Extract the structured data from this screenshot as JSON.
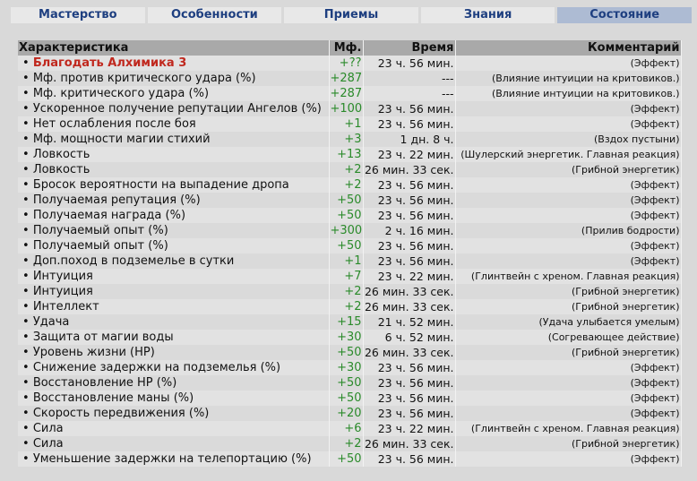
{
  "tabs": [
    "Мастерство",
    "Особенности",
    "Приемы",
    "Знания",
    "Состояние"
  ],
  "active_tab": 4,
  "table": {
    "headers": [
      "Характеристика",
      "Мф.",
      "Время",
      "Комментарий"
    ],
    "rows": [
      [
        "Благодать Алхимика 3",
        "+??",
        "23 ч. 56 мин.",
        "(Эффект)"
      ],
      [
        "Мф. против критического удара (%)",
        "+287",
        "---",
        "(Влияние интуиции на критовиков.)"
      ],
      [
        "Мф. критического удара (%)",
        "+287",
        "---",
        "(Влияние интуиции на критовиков.)"
      ],
      [
        "Ускоренное получение репутации Ангелов (%)",
        "+100",
        "23 ч. 56 мин.",
        "(Эффект)"
      ],
      [
        "Нет ослабления после боя",
        "+1",
        "23 ч. 56 мин.",
        "(Эффект)"
      ],
      [
        "Мф. мощности магии стихий",
        "+3",
        "1 дн. 8 ч.",
        "(Вздох пустыни)"
      ],
      [
        "Ловкость",
        "+13",
        "23 ч. 22 мин.",
        "(Шулерский энергетик. Главная реакция)"
      ],
      [
        "Ловкость",
        "+2",
        "26 мин. 33 сек.",
        "(Грибной энергетик)"
      ],
      [
        "Бросок вероятности на выпадение дропа",
        "+2",
        "23 ч. 56 мин.",
        "(Эффект)"
      ],
      [
        "Получаемая репутация (%)",
        "+50",
        "23 ч. 56 мин.",
        "(Эффект)"
      ],
      [
        "Получаемая награда (%)",
        "+50",
        "23 ч. 56 мин.",
        "(Эффект)"
      ],
      [
        "Получаемый опыт (%)",
        "+300",
        "2 ч. 16 мин.",
        "(Прилив бодрости)"
      ],
      [
        "Получаемый опыт (%)",
        "+50",
        "23 ч. 56 мин.",
        "(Эффект)"
      ],
      [
        "Доп.поход в подземелье в сутки",
        "+1",
        "23 ч. 56 мин.",
        "(Эффект)"
      ],
      [
        "Интуиция",
        "+7",
        "23 ч. 22 мин.",
        "(Глинтвейн с хреном. Главная реакция)"
      ],
      [
        "Интуиция",
        "+2",
        "26 мин. 33 сек.",
        "(Грибной энергетик)"
      ],
      [
        "Интеллект",
        "+2",
        "26 мин. 33 сек.",
        "(Грибной энергетик)"
      ],
      [
        "Удача",
        "+15",
        "21 ч. 52 мин.",
        "(Удача улыбается умелым)"
      ],
      [
        "Защита от магии воды",
        "+30",
        "6 ч. 52 мин.",
        "(Согревающее действие)"
      ],
      [
        "Уровень жизни (HP)",
        "+50",
        "26 мин. 33 сек.",
        "(Грибной энергетик)"
      ],
      [
        "Снижение задержки на подземелья (%)",
        "+30",
        "23 ч. 56 мин.",
        "(Эффект)"
      ],
      [
        "Восстановление HP (%)",
        "+50",
        "23 ч. 56 мин.",
        "(Эффект)"
      ],
      [
        "Восстановление маны (%)",
        "+50",
        "23 ч. 56 мин.",
        "(Эффект)"
      ],
      [
        "Скорость передвижения (%)",
        "+20",
        "23 ч. 56 мин.",
        "(Эффект)"
      ],
      [
        "Сила",
        "+6",
        "23 ч. 22 мин.",
        "(Глинтвейн с хреном. Главная реакция)"
      ],
      [
        "Сила",
        "+2",
        "26 мин. 33 сек.",
        "(Грибной энергетик)"
      ],
      [
        "Уменьшение задержки на телепортацию (%)",
        "+50",
        "23 ч. 56 мин.",
        "(Эффект)"
      ]
    ]
  }
}
